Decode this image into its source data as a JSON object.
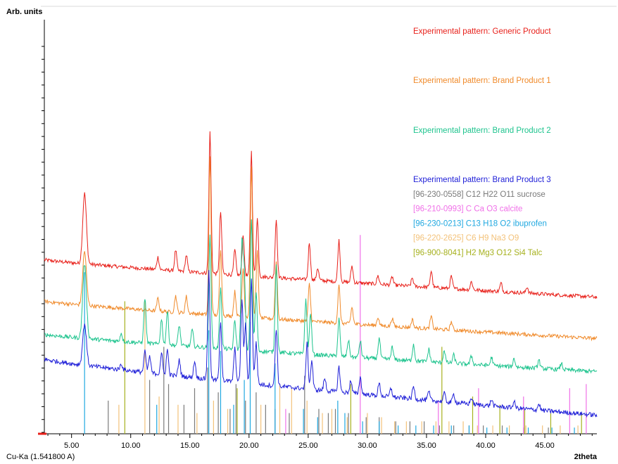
{
  "chart_data": {
    "type": "line",
    "ylabel": "Arb. units",
    "xlabel": "2theta",
    "radiation_label": "Cu-Ka (1.541800 A)",
    "xlim": [
      2.7,
      49.4
    ],
    "xticks": [
      5.0,
      10.0,
      15.0,
      20.0,
      25.0,
      30.0,
      35.0,
      40.0,
      45.0
    ],
    "xtick_labels": [
      "5.00",
      "10.00",
      "15.00",
      "20.00",
      "25.00",
      "30.00",
      "35.00",
      "40.00",
      "45.00"
    ],
    "ylim": [
      0,
      100
    ],
    "legend_position": "top-right",
    "series": [
      {
        "name": "Experimental pattern: Generic Product",
        "color": "#e8201a",
        "baseline": 42,
        "end_level": 33,
        "noise": 0.45,
        "peaks": [
          [
            6.1,
            17
          ],
          [
            12.3,
            3
          ],
          [
            13.8,
            5
          ],
          [
            14.7,
            4
          ],
          [
            16.7,
            34
          ],
          [
            17.6,
            15
          ],
          [
            18.8,
            6
          ],
          [
            19.5,
            10
          ],
          [
            20.2,
            30
          ],
          [
            20.7,
            14
          ],
          [
            22.3,
            14
          ],
          [
            25.1,
            9
          ],
          [
            25.8,
            3
          ],
          [
            27.6,
            10
          ],
          [
            28.7,
            4
          ],
          [
            30.9,
            2
          ],
          [
            32.1,
            2
          ],
          [
            33.8,
            2
          ],
          [
            35.4,
            4
          ],
          [
            37.1,
            3
          ],
          [
            38.8,
            2
          ],
          [
            41.3,
            2
          ],
          [
            43.5,
            1.5
          ]
        ]
      },
      {
        "name": "Experimental pattern: Brand Product 1",
        "color": "#f08a2a",
        "baseline": 32,
        "end_level": 23,
        "noise": 0.45,
        "peaks": [
          [
            6.1,
            13
          ],
          [
            12.3,
            3
          ],
          [
            13.8,
            4
          ],
          [
            14.7,
            4
          ],
          [
            16.7,
            38
          ],
          [
            17.6,
            16
          ],
          [
            18.8,
            6
          ],
          [
            19.5,
            12
          ],
          [
            20.2,
            36
          ],
          [
            20.7,
            16
          ],
          [
            22.3,
            14
          ],
          [
            25.1,
            9
          ],
          [
            27.6,
            9
          ],
          [
            28.7,
            4
          ],
          [
            30.9,
            2
          ],
          [
            32.1,
            2
          ],
          [
            33.8,
            2
          ],
          [
            35.4,
            3
          ],
          [
            37.1,
            2
          ]
        ]
      },
      {
        "name": "Experimental pattern: Brand Product 2",
        "color": "#1ec48e",
        "baseline": 24,
        "end_level": 15,
        "noise": 0.5,
        "peaks": [
          [
            6.1,
            18
          ],
          [
            9.2,
            2
          ],
          [
            11.2,
            11
          ],
          [
            12.6,
            6
          ],
          [
            13.1,
            8
          ],
          [
            14.1,
            5
          ],
          [
            15.2,
            4
          ],
          [
            16.7,
            27
          ],
          [
            17.6,
            15
          ],
          [
            18.8,
            7
          ],
          [
            19.4,
            25
          ],
          [
            19.6,
            18
          ],
          [
            20.2,
            32
          ],
          [
            20.6,
            14
          ],
          [
            22.3,
            21
          ],
          [
            24.8,
            13
          ],
          [
            25.2,
            10
          ],
          [
            27.6,
            9
          ],
          [
            28.4,
            4
          ],
          [
            29.4,
            4
          ],
          [
            31.0,
            5
          ],
          [
            32.1,
            3
          ],
          [
            33.9,
            4
          ],
          [
            35.2,
            3
          ],
          [
            36.5,
            3
          ],
          [
            37.3,
            2
          ],
          [
            38.8,
            2
          ],
          [
            40.5,
            2
          ],
          [
            42.4,
            2
          ],
          [
            44.5,
            2
          ],
          [
            46.4,
            1.5
          ]
        ]
      },
      {
        "name": "Experimental pattern: Brand Product 3",
        "color": "#2020d8",
        "baseline": 18,
        "end_level": 4.5,
        "noise": 0.55,
        "peaks": [
          [
            6.1,
            10
          ],
          [
            9.2,
            1.5
          ],
          [
            11.2,
            5
          ],
          [
            11.6,
            4
          ],
          [
            12.6,
            5
          ],
          [
            13.1,
            6
          ],
          [
            14.1,
            4
          ],
          [
            15.4,
            4
          ],
          [
            16.6,
            26
          ],
          [
            17.6,
            14
          ],
          [
            18.8,
            8
          ],
          [
            19.4,
            20
          ],
          [
            19.7,
            14
          ],
          [
            20.2,
            25
          ],
          [
            20.6,
            10
          ],
          [
            22.3,
            14
          ],
          [
            24.9,
            11
          ],
          [
            25.3,
            7
          ],
          [
            26.4,
            3
          ],
          [
            27.6,
            6
          ],
          [
            28.6,
            3
          ],
          [
            29.4,
            4
          ],
          [
            31.0,
            3
          ],
          [
            32.0,
            2
          ],
          [
            33.9,
            3
          ],
          [
            35.2,
            2
          ],
          [
            36.5,
            2
          ],
          [
            37.3,
            2
          ],
          [
            38.8,
            1.5
          ],
          [
            40.5,
            1.5
          ],
          [
            42.4,
            1.5
          ],
          [
            44.5,
            1.5
          ]
        ]
      }
    ],
    "reference_patterns": [
      {
        "name": "[96-230-0558] C12 H22 O11 sucrose",
        "color": "#7a7a7a",
        "lines": [
          [
            8.1,
            8
          ],
          [
            11.6,
            13
          ],
          [
            12.8,
            21
          ],
          [
            13.2,
            12
          ],
          [
            14.5,
            7
          ],
          [
            15.4,
            11
          ],
          [
            16.5,
            16
          ],
          [
            17.4,
            10
          ],
          [
            18.4,
            6
          ],
          [
            18.9,
            12
          ],
          [
            19.7,
            8
          ],
          [
            20.6,
            10
          ],
          [
            21.4,
            7
          ],
          [
            22.2,
            6
          ],
          [
            23.4,
            5
          ],
          [
            24.7,
            14
          ],
          [
            25.9,
            6
          ],
          [
            26.7,
            5
          ],
          [
            27.3,
            6
          ],
          [
            28.4,
            5
          ],
          [
            29.9,
            4
          ],
          [
            31.0,
            4
          ],
          [
            32.4,
            3
          ],
          [
            33.6,
            3
          ],
          [
            34.8,
            3
          ],
          [
            36.1,
            2
          ],
          [
            37.3,
            2
          ],
          [
            38.6,
            2
          ],
          [
            39.8,
            2
          ],
          [
            41.4,
            2
          ],
          [
            43.2,
            1.5
          ],
          [
            45.3,
            1.5
          ]
        ]
      },
      {
        "name": "[96-210-0993] C Ca O3  calcite",
        "color": "#f070e8",
        "lines": [
          [
            23.1,
            6
          ],
          [
            29.4,
            48
          ],
          [
            36.0,
            8
          ],
          [
            39.4,
            11
          ],
          [
            43.2,
            9
          ],
          [
            47.1,
            11
          ],
          [
            48.5,
            12
          ]
        ]
      },
      {
        "name": "[96-230-0213] C13 H18 O2 ibuprofen",
        "color": "#20a8e0",
        "lines": [
          [
            6.1,
            39
          ],
          [
            12.2,
            7
          ],
          [
            16.6,
            25
          ],
          [
            17.6,
            20
          ],
          [
            18.7,
            7
          ],
          [
            19.6,
            13
          ],
          [
            20.1,
            27
          ],
          [
            22.2,
            17
          ],
          [
            24.6,
            6
          ],
          [
            25.8,
            4
          ],
          [
            27.5,
            8
          ],
          [
            28.1,
            5
          ],
          [
            29.6,
            3
          ],
          [
            31.0,
            3
          ],
          [
            32.6,
            2
          ],
          [
            34.1,
            2
          ],
          [
            35.6,
            2
          ],
          [
            37.1,
            2
          ],
          [
            38.6,
            2
          ],
          [
            40.1,
            1.5
          ],
          [
            41.8,
            1.5
          ],
          [
            43.6,
            1.5
          ],
          [
            45.6,
            1.5
          ],
          [
            47.5,
            1.5
          ]
        ]
      },
      {
        "name": "[96-220-2625] C6 H9 Na3 O9",
        "color": "#f3c27a",
        "lines": [
          [
            9.0,
            7
          ],
          [
            11.2,
            32
          ],
          [
            12.4,
            9
          ],
          [
            14.0,
            7
          ],
          [
            15.6,
            5
          ],
          [
            17.0,
            8
          ],
          [
            18.2,
            6
          ],
          [
            21.0,
            7
          ],
          [
            22.6,
            12
          ],
          [
            23.6,
            11
          ],
          [
            24.9,
            8
          ],
          [
            26.2,
            5
          ],
          [
            27.0,
            6
          ],
          [
            28.3,
            4
          ],
          [
            30.0,
            5
          ],
          [
            31.2,
            4
          ],
          [
            32.3,
            3
          ],
          [
            33.3,
            3
          ],
          [
            34.6,
            3
          ],
          [
            35.8,
            3
          ],
          [
            36.9,
            3
          ],
          [
            38.1,
            3
          ],
          [
            39.3,
            2
          ],
          [
            40.6,
            2
          ],
          [
            42.0,
            2
          ],
          [
            43.4,
            2
          ],
          [
            44.8,
            2
          ],
          [
            46.3,
            2
          ],
          [
            47.8,
            2
          ]
        ]
      },
      {
        "name": "[96-900-8041] H2 Mg3 O12 Si4  Talc",
        "color": "#a6b11e",
        "lines": [
          [
            9.5,
            32
          ],
          [
            19.0,
            11
          ],
          [
            28.6,
            12
          ],
          [
            36.3,
            21
          ],
          [
            38.9,
            9
          ],
          [
            41.2,
            7
          ],
          [
            43.3,
            6
          ],
          [
            45.5,
            5
          ],
          [
            48.1,
            5
          ]
        ]
      }
    ]
  }
}
